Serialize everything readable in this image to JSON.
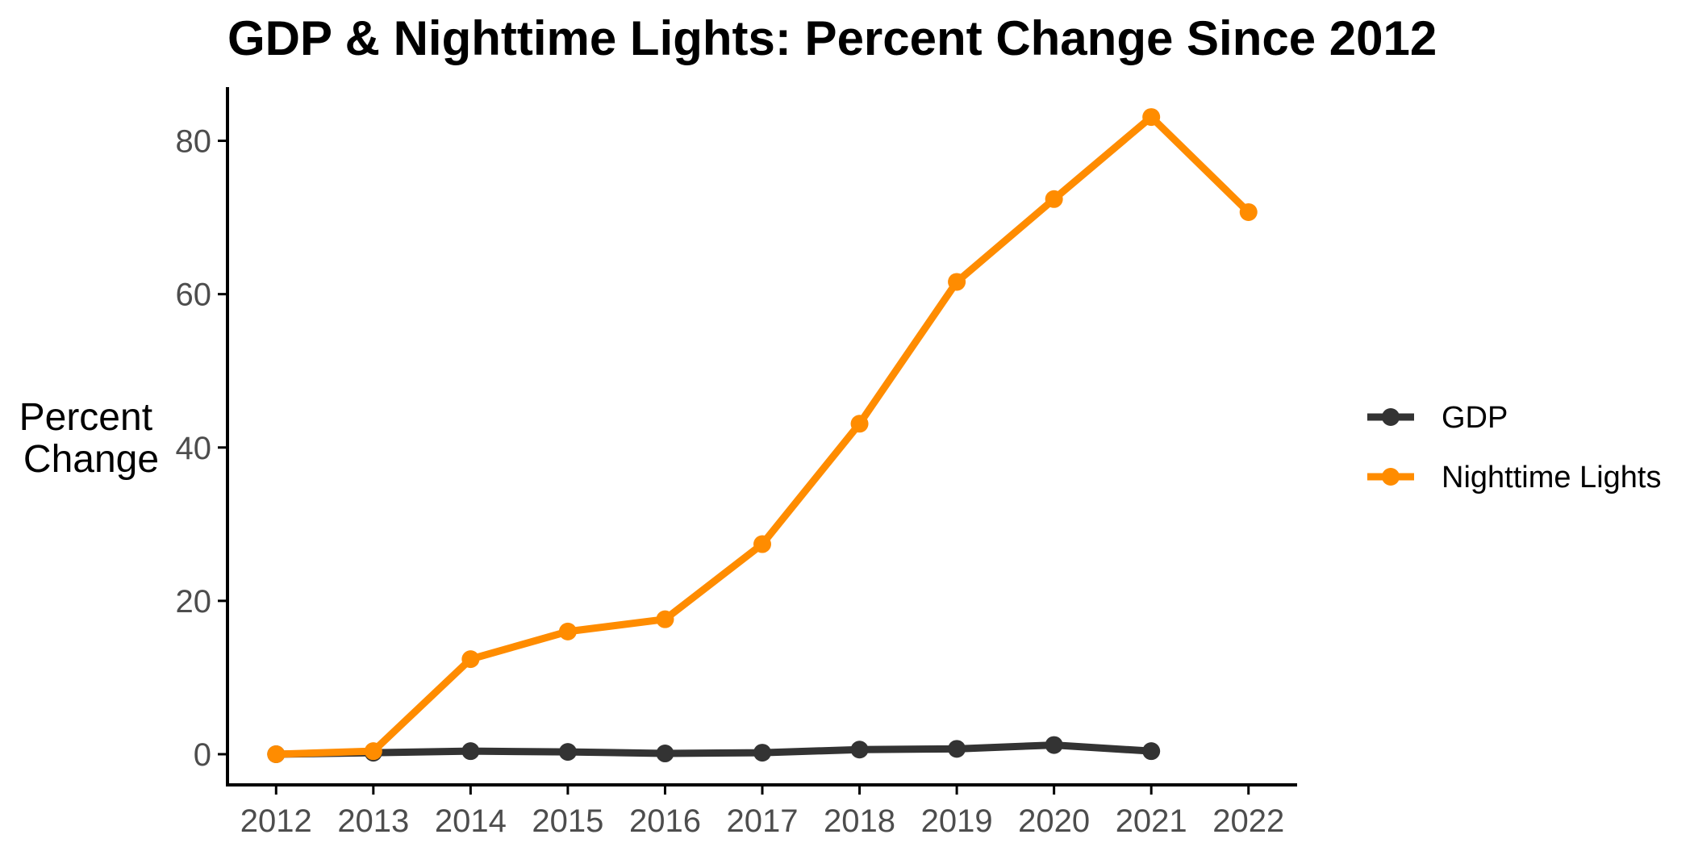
{
  "chart_data": {
    "type": "line",
    "title": "GDP & Nighttime Lights: Percent Change Since 2012",
    "xlabel": "",
    "ylabel_lines": [
      "Percent",
      "Change"
    ],
    "x": [
      2012,
      2013,
      2014,
      2015,
      2016,
      2017,
      2018,
      2019,
      2020,
      2021,
      2022
    ],
    "xlim": [
      2011.5,
      2022.5
    ],
    "ylim": [
      -4,
      87
    ],
    "y_ticks": [
      0,
      20,
      40,
      60,
      80
    ],
    "grid": false,
    "legend_position": "right",
    "series": [
      {
        "name": "GDP",
        "color": "#333333",
        "values": [
          0,
          0.2,
          0.4,
          0.3,
          0.1,
          0.2,
          0.6,
          0.7,
          1.2,
          0.4,
          null
        ]
      },
      {
        "name": "Nighttime Lights",
        "color": "#ff8c00",
        "values": [
          0,
          0.4,
          12.4,
          16.0,
          17.6,
          27.4,
          43.1,
          61.6,
          72.4,
          83.1,
          70.7
        ]
      }
    ]
  }
}
